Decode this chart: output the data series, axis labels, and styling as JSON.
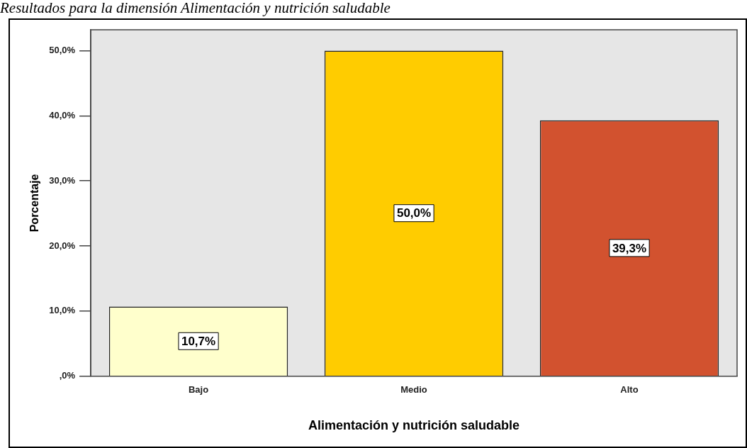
{
  "chart_data": {
    "type": "bar",
    "title": "Resultados para la dimensión Alimentación y nutrición saludable",
    "xlabel": "Alimentación y nutrición saludable",
    "ylabel": "Porcentaje",
    "categories": [
      "Bajo",
      "Medio",
      "Alto"
    ],
    "values": [
      10.7,
      50.0,
      39.3
    ],
    "value_labels": [
      "10,7%",
      "50,0%",
      "39,3%"
    ],
    "colors": [
      "#ffffcc",
      "#ffcc00",
      "#d2522f"
    ],
    "ylim": [
      0,
      53.2
    ],
    "yticks": [
      {
        "value": 0,
        "label": ",0%"
      },
      {
        "value": 10,
        "label": "10,0%"
      },
      {
        "value": 20,
        "label": "20,0%"
      },
      {
        "value": 30,
        "label": "30,0%"
      },
      {
        "value": 40,
        "label": "40,0%"
      },
      {
        "value": 50,
        "label": "50,0%"
      }
    ],
    "grid": false,
    "legend": false
  }
}
